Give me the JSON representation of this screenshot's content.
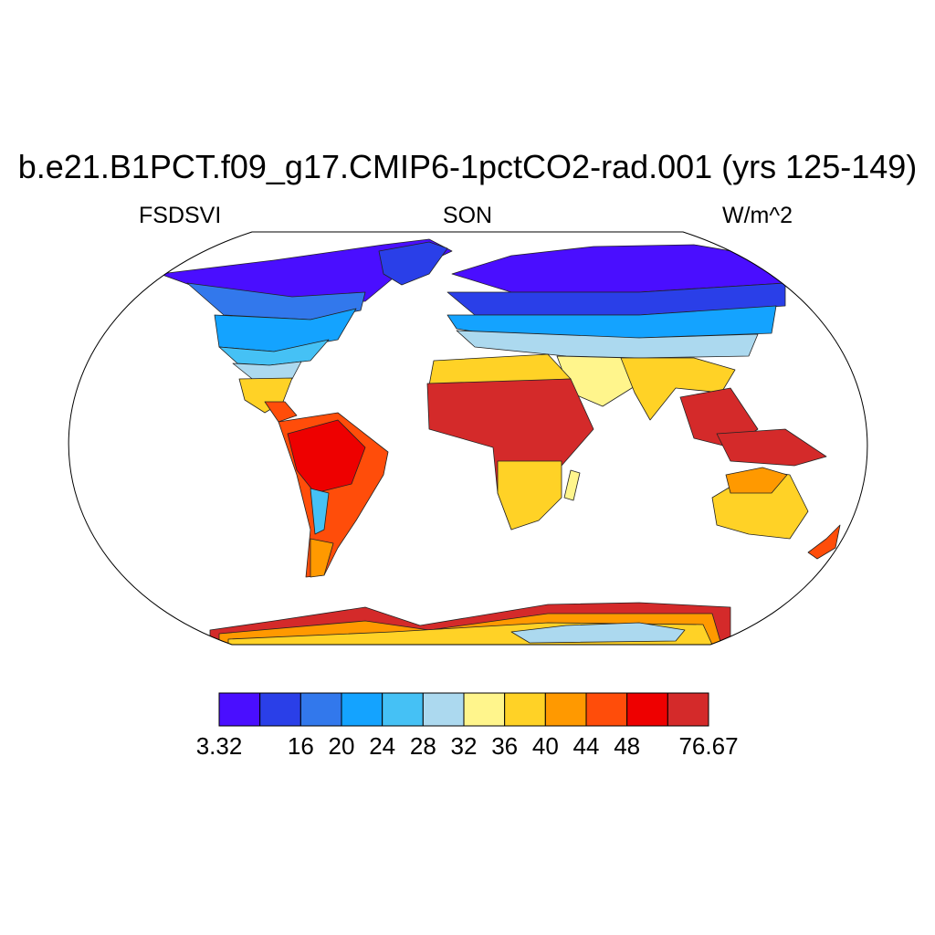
{
  "title": "b.e21.B1PCT.f09_g17.CMIP6-1pctCO2-rad.001 (yrs 125-149)",
  "left_string": "FSDSVI",
  "center_string": "SON",
  "right_string": "W/m^2",
  "projection": "Robinson",
  "colorbar": {
    "colors": [
      "#4a0eff",
      "#2a3fe8",
      "#3278ec",
      "#14a3ff",
      "#45c1f5",
      "#acd9ef",
      "#fff58c",
      "#ffd226",
      "#ff9900",
      "#ff4d0a",
      "#ee0000",
      "#d42a2a"
    ],
    "labels": [
      "3.32",
      "16",
      "20",
      "24",
      "28",
      "32",
      "36",
      "40",
      "44",
      "48",
      "76.67"
    ],
    "label_positions": [
      0,
      2,
      3,
      4,
      5,
      6,
      7,
      8,
      9,
      10,
      12
    ]
  }
}
